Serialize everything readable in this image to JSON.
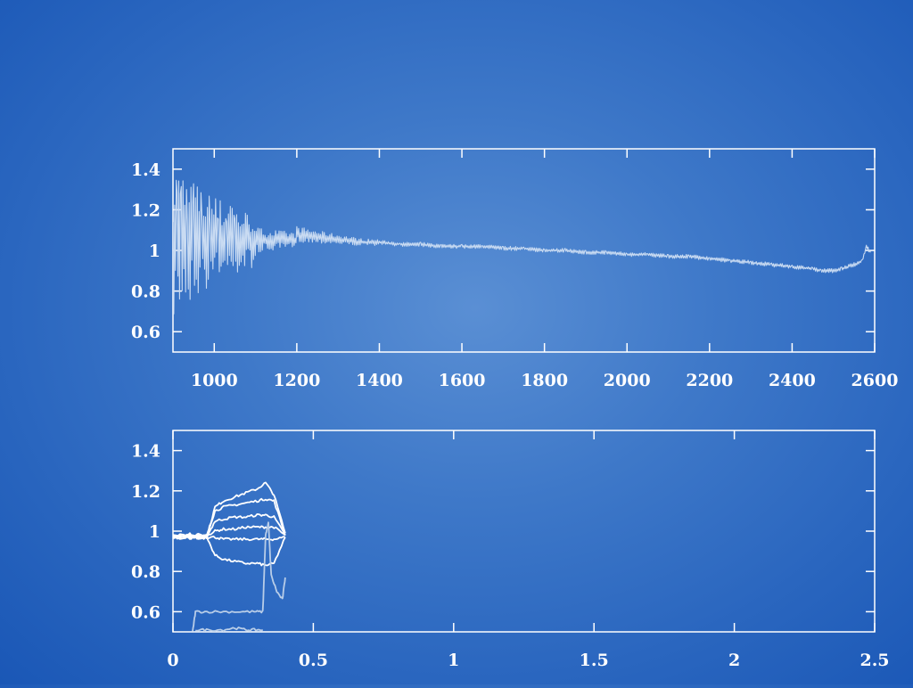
{
  "chart_data": [
    {
      "type": "line",
      "xlim": [
        900,
        2600
      ],
      "ylim": [
        0.5,
        1.5
      ],
      "x_ticks": [
        "1000",
        "1200",
        "1400",
        "1600",
        "1800",
        "2000",
        "2200",
        "2400",
        "2600"
      ],
      "y_ticks": [
        "0.6",
        "0.8",
        "1",
        "1.2",
        "1.4"
      ],
      "line_color": "#c9dbf2",
      "series": [
        {
          "x": [
            900,
            910,
            920,
            935,
            950,
            970,
            990,
            1010,
            1030,
            1050,
            1080,
            1110,
            1140,
            1170,
            1200,
            1240,
            1280,
            1320,
            1360,
            1400,
            1450,
            1500,
            1550,
            1600,
            1650,
            1700,
            1750,
            1800,
            1850,
            1900,
            1950,
            2000,
            2050,
            2100,
            2150,
            2200,
            2250,
            2300,
            2350,
            2400,
            2450,
            2470,
            2500,
            2520,
            2550,
            2570,
            2580,
            2590
          ],
          "y": [
            1.05,
            0.72,
            1.45,
            0.62,
            1.38,
            0.82,
            1.3,
            0.85,
            1.28,
            0.88,
            1.22,
            0.92,
            1.18,
            1.12,
            1.08,
            1.07,
            1.06,
            1.05,
            1.04,
            1.04,
            1.03,
            1.03,
            1.02,
            1.02,
            1.02,
            1.01,
            1.01,
            1.0,
            1.0,
            0.99,
            0.99,
            0.98,
            0.98,
            0.97,
            0.97,
            0.96,
            0.95,
            0.94,
            0.93,
            0.92,
            0.91,
            0.9,
            0.9,
            0.91,
            0.93,
            0.95,
            1.02,
            0.99
          ]
        }
      ]
    },
    {
      "type": "line",
      "xlim": [
        0,
        2.5
      ],
      "ylim": [
        0.5,
        1.5
      ],
      "x_ticks": [
        "0",
        "0.5",
        "1",
        "1.5",
        "2",
        "2.5"
      ],
      "y_ticks": [
        "0.6",
        "0.8",
        "1",
        "1.2",
        "1.4"
      ],
      "series": [
        {
          "color": "#ffffff",
          "x": [
            0,
            0.03,
            0.06,
            0.09,
            0.12,
            0.15,
            0.18,
            0.22,
            0.26,
            0.3,
            0.33,
            0.36,
            0.4
          ],
          "y": [
            0.97,
            0.99,
            0.96,
            0.99,
            0.97,
            1.12,
            1.15,
            1.17,
            1.19,
            1.21,
            1.24,
            1.18,
            0.99
          ]
        },
        {
          "color": "#ffffff",
          "x": [
            0,
            0.03,
            0.06,
            0.09,
            0.12,
            0.15,
            0.18,
            0.22,
            0.26,
            0.3,
            0.33,
            0.36,
            0.4
          ],
          "y": [
            0.98,
            0.97,
            0.99,
            0.96,
            0.98,
            1.1,
            1.12,
            1.13,
            1.14,
            1.15,
            1.16,
            1.15,
            0.98
          ]
        },
        {
          "color": "#ffffff",
          "x": [
            0,
            0.03,
            0.06,
            0.09,
            0.12,
            0.15,
            0.18,
            0.22,
            0.26,
            0.3,
            0.33,
            0.36,
            0.4
          ],
          "y": [
            0.97,
            0.98,
            0.97,
            0.98,
            0.97,
            1.05,
            1.06,
            1.07,
            1.07,
            1.08,
            1.08,
            1.07,
            0.98
          ]
        },
        {
          "color": "#ffffff",
          "x": [
            0,
            0.03,
            0.06,
            0.09,
            0.12,
            0.15,
            0.18,
            0.22,
            0.26,
            0.3,
            0.33,
            0.36,
            0.4
          ],
          "y": [
            0.98,
            0.97,
            0.98,
            0.97,
            0.98,
            1.0,
            1.01,
            1.01,
            1.02,
            1.02,
            1.02,
            1.02,
            0.98
          ]
        },
        {
          "color": "#ffffff",
          "x": [
            0,
            0.03,
            0.06,
            0.09,
            0.12,
            0.15,
            0.18,
            0.22,
            0.26,
            0.3,
            0.33,
            0.36,
            0.4
          ],
          "y": [
            0.97,
            0.98,
            0.97,
            0.97,
            0.97,
            0.97,
            0.96,
            0.96,
            0.96,
            0.96,
            0.96,
            0.96,
            0.97
          ]
        },
        {
          "color": "#ffffff",
          "x": [
            0,
            0.03,
            0.06,
            0.09,
            0.12,
            0.15,
            0.18,
            0.22,
            0.26,
            0.3,
            0.33,
            0.36,
            0.4
          ],
          "y": [
            0.97,
            0.96,
            0.98,
            0.96,
            0.97,
            0.88,
            0.86,
            0.85,
            0.84,
            0.84,
            0.83,
            0.84,
            0.97
          ]
        },
        {
          "color": "#b8cde8",
          "x": [
            0.07,
            0.08,
            0.12,
            0.18,
            0.24,
            0.29,
            0.32,
            0.33,
            0.34,
            0.35,
            0.37,
            0.39,
            0.4
          ],
          "y": [
            0.5,
            0.6,
            0.6,
            0.6,
            0.6,
            0.6,
            0.6,
            0.98,
            1.04,
            0.78,
            0.7,
            0.66,
            0.77
          ]
        },
        {
          "color": "#b8cde8",
          "x": [
            0.08,
            0.12,
            0.18,
            0.22,
            0.26,
            0.29,
            0.32
          ],
          "y": [
            0.51,
            0.51,
            0.51,
            0.52,
            0.51,
            0.51,
            0.51
          ]
        }
      ]
    }
  ]
}
